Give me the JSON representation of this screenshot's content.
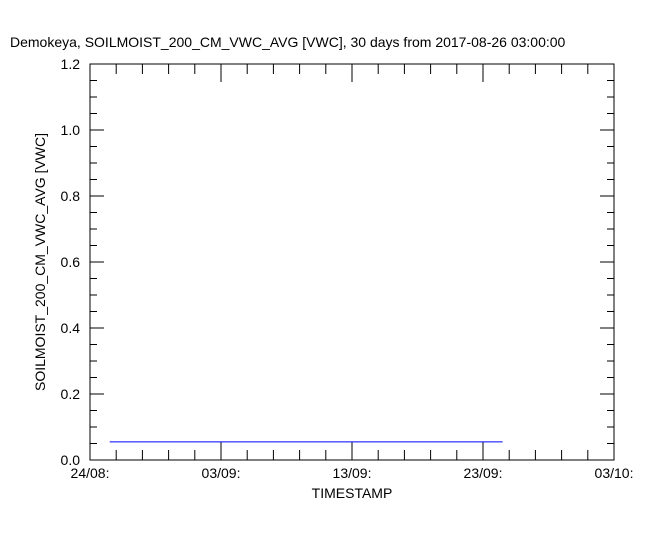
{
  "chart_data": {
    "type": "line",
    "title": "Demokeya, SOILMOIST_200_CM_VWC_AVG [VWC], 30 days from  2017-08-26 03:00:00",
    "xlabel": "TIMESTAMP",
    "ylabel": "SOILMOIST_200_CM_VWC_AVG [VWC]",
    "ylim": [
      0.0,
      1.2
    ],
    "y_ticks": [
      "0.0",
      "0.2",
      "0.4",
      "0.6",
      "0.8",
      "1.0",
      "1.2"
    ],
    "x_tick_labels": [
      "24/08:",
      "03/09:",
      "13/09:",
      "23/09:",
      "03/10:"
    ],
    "xlim_days_from_first_tick": [
      0,
      40
    ],
    "grid": false,
    "series": [
      {
        "color": "#0000ff",
        "x_days_from_first_tick": [
          1.5,
          31.5
        ],
        "values": [
          0.055,
          0.055
        ]
      }
    ]
  }
}
